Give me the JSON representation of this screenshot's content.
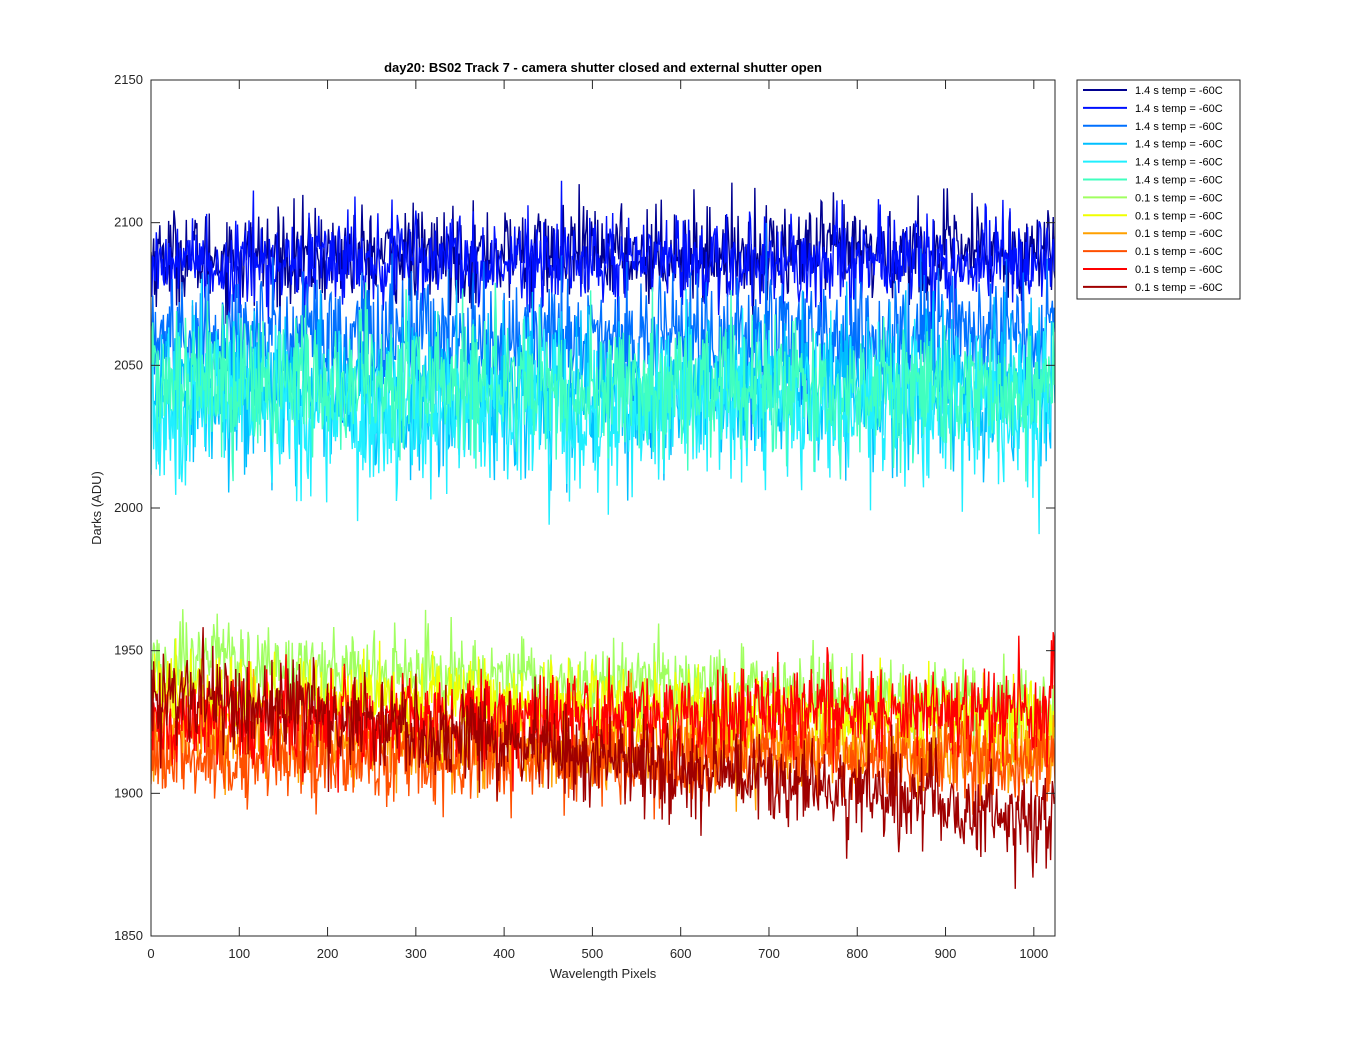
{
  "chart_data": {
    "type": "line",
    "title": "day20: BS02  Track 7 - camera shutter closed and external shutter open",
    "xlabel": "Wavelength Pixels",
    "ylabel": "Darks (ADU)",
    "xlim": [
      0,
      1024
    ],
    "ylim": [
      1850,
      2150
    ],
    "xticks": [
      0,
      100,
      200,
      300,
      400,
      500,
      600,
      700,
      800,
      900,
      1000
    ],
    "yticks": [
      1850,
      1900,
      1950,
      2000,
      2050,
      2100,
      2150
    ],
    "grid": false,
    "legend_position": "outside-top-right",
    "series": [
      {
        "name": "1.4 s temp = -60C",
        "color": "#00008f",
        "mean": 2088,
        "amp": 11,
        "trend": [
          0,
          2
        ]
      },
      {
        "name": "1.4 s temp = -60C",
        "color": "#0010ff",
        "mean": 2086,
        "amp": 11,
        "trend": [
          0,
          1
        ]
      },
      {
        "name": "1.4 s temp = -60C",
        "color": "#0070ff",
        "mean": 2060,
        "amp": 15,
        "trend": [
          0,
          0
        ]
      },
      {
        "name": "1.4 s temp = -60C",
        "color": "#00bfff",
        "mean": 2040,
        "amp": 18,
        "trend": [
          0,
          2
        ]
      },
      {
        "name": "1.4 s temp = -60C",
        "color": "#20efff",
        "mean": 2035,
        "amp": 18,
        "trend": [
          0,
          0
        ]
      },
      {
        "name": "1.4 s temp = -60C",
        "color": "#40ffbf",
        "mean": 2046,
        "amp": 16,
        "trend": [
          0,
          -5
        ]
      },
      {
        "name": "0.1 s temp = -60C",
        "color": "#a0ff60",
        "mean": 1942,
        "amp": 9,
        "trend": [
          5,
          -12
        ]
      },
      {
        "name": "0.1 s temp = -60C",
        "color": "#f0ff00",
        "mean": 1935,
        "amp": 10,
        "trend": [
          0,
          -10
        ]
      },
      {
        "name": "0.1 s temp = -60C",
        "color": "#ffa000",
        "mean": 1920,
        "amp": 10,
        "trend": [
          0,
          -5
        ]
      },
      {
        "name": "0.1 s temp = -60C",
        "color": "#ff5000",
        "mean": 1912,
        "amp": 10,
        "trend": [
          0,
          0
        ]
      },
      {
        "name": "0.1 s temp = -60C",
        "color": "#ff0000",
        "mean": 1925,
        "amp": 11,
        "trend": [
          0,
          5
        ]
      },
      {
        "name": "0.1 s temp = -60C",
        "color": "#a00000",
        "mean": 1928,
        "amp": 11,
        "trend": [
          8,
          -38
        ]
      }
    ]
  }
}
